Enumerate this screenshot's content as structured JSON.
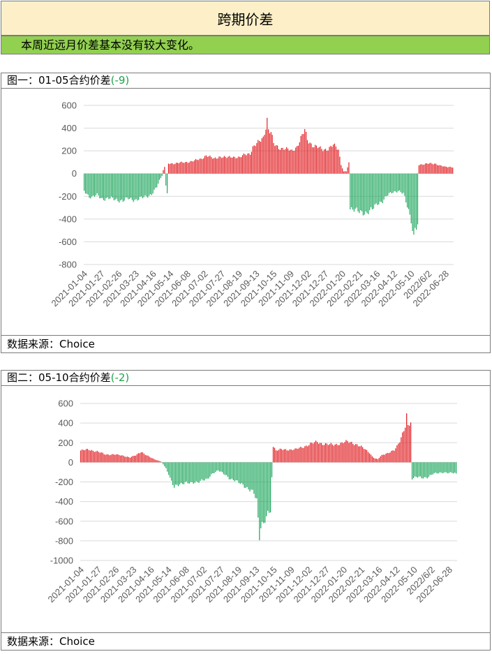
{
  "header": {
    "title": "跨期价差"
  },
  "summary": {
    "text": "本周近远月价差基本没有较大变化。"
  },
  "colors": {
    "positive": "#e0181c",
    "negative": "#1aa55a",
    "grid": "#d9d9d9",
    "title_bg": "#fdf0c8",
    "summary_bg": "#92d050"
  },
  "charts": [
    {
      "label": "图一：01-05合约价差",
      "latest": "(-9)",
      "source": "数据来源：Choice",
      "chart_data": {
        "type": "bar",
        "ylim": [
          -800,
          600
        ],
        "yticks": [
          -800,
          -600,
          -400,
          -200,
          0,
          200,
          400,
          600
        ],
        "xticks": [
          "2021-01-04",
          "2021-01-27",
          "2021-02-26",
          "2021-03-23",
          "2021-04-16",
          "2021-05-14",
          "2021-06-08",
          "2021-07-02",
          "2021-07-27",
          "2021-08-19",
          "2021-09-13",
          "2021-10-15",
          "2021-11-09",
          "2021-12-02",
          "2021-12-27",
          "2022-01-20",
          "2022-02-21",
          "2022-03-16",
          "2022-04-12",
          "2022-05-10",
          "2022/6/2",
          "2022-06-28"
        ],
        "anchors": [
          [
            0,
            -150
          ],
          [
            4,
            -200
          ],
          [
            6,
            -210
          ],
          [
            10,
            -190
          ],
          [
            14,
            -220
          ],
          [
            20,
            -220
          ],
          [
            26,
            -230
          ],
          [
            30,
            -240
          ],
          [
            34,
            -220
          ],
          [
            40,
            -230
          ],
          [
            46,
            -210
          ],
          [
            52,
            -180
          ],
          [
            56,
            -120
          ],
          [
            58,
            -60
          ],
          [
            60,
            -20
          ],
          [
            61,
            30
          ],
          [
            62,
            60
          ],
          [
            63,
            -100
          ],
          [
            64,
            -160
          ],
          [
            65,
            90
          ],
          [
            70,
            90
          ],
          [
            78,
            100
          ],
          [
            84,
            110
          ],
          [
            90,
            130
          ],
          [
            94,
            160
          ],
          [
            100,
            130
          ],
          [
            104,
            150
          ],
          [
            110,
            140
          ],
          [
            114,
            150
          ],
          [
            120,
            140
          ],
          [
            124,
            170
          ],
          [
            128,
            180
          ],
          [
            130,
            230
          ],
          [
            134,
            270
          ],
          [
            138,
            320
          ],
          [
            140,
            420
          ],
          [
            141,
            480
          ],
          [
            142,
            380
          ],
          [
            144,
            360
          ],
          [
            146,
            260
          ],
          [
            150,
            230
          ],
          [
            154,
            220
          ],
          [
            160,
            200
          ],
          [
            164,
            240
          ],
          [
            168,
            330
          ],
          [
            170,
            380
          ],
          [
            172,
            300
          ],
          [
            176,
            250
          ],
          [
            180,
            230
          ],
          [
            184,
            210
          ],
          [
            188,
            220
          ],
          [
            192,
            250
          ],
          [
            196,
            210
          ],
          [
            198,
            80
          ],
          [
            200,
            20
          ],
          [
            202,
            20
          ],
          [
            204,
            90
          ],
          [
            205,
            -300
          ],
          [
            208,
            -320
          ],
          [
            212,
            -340
          ],
          [
            218,
            -340
          ],
          [
            222,
            -320
          ],
          [
            226,
            -260
          ],
          [
            230,
            -240
          ],
          [
            234,
            -190
          ],
          [
            238,
            -160
          ],
          [
            242,
            -150
          ],
          [
            246,
            -180
          ],
          [
            248,
            -250
          ],
          [
            250,
            -320
          ],
          [
            252,
            -400
          ],
          [
            254,
            -560
          ],
          [
            255,
            -480
          ],
          [
            257,
            -470
          ],
          [
            258,
            80
          ],
          [
            262,
            80
          ],
          [
            266,
            90
          ],
          [
            270,
            90
          ],
          [
            274,
            70
          ],
          [
            278,
            60
          ],
          [
            282,
            60
          ],
          [
            284,
            56
          ]
        ],
        "bar_count": 285
      }
    },
    {
      "label": "图二：05-10合约价差",
      "latest": "(-2)",
      "source": "数据来源：Choice",
      "chart_data": {
        "type": "bar",
        "ylim": [
          -1000,
          600
        ],
        "yticks": [
          -1000,
          -800,
          -600,
          -400,
          -200,
          0,
          200,
          400,
          600
        ],
        "xticks": [
          "2021-01-04",
          "2021-01-27",
          "2021-02-26",
          "2021-03-23",
          "2021-04-16",
          "2021-05-14",
          "2021-06-08",
          "2021-07-02",
          "2021-07-27",
          "2021-08-19",
          "2021-09-13",
          "2021-10-15",
          "2021-11-09",
          "2021-12-02",
          "2021-12-27",
          "2022-01-20",
          "2022-02-21",
          "2022-03-16",
          "2022-04-12",
          "2022-05-10",
          "2022/6/2",
          "2022-06-28"
        ],
        "anchors": [
          [
            0,
            120
          ],
          [
            6,
            130
          ],
          [
            12,
            110
          ],
          [
            18,
            80
          ],
          [
            24,
            80
          ],
          [
            30,
            70
          ],
          [
            36,
            50
          ],
          [
            40,
            70
          ],
          [
            44,
            110
          ],
          [
            48,
            70
          ],
          [
            52,
            40
          ],
          [
            56,
            20
          ],
          [
            58,
            10
          ],
          [
            60,
            -20
          ],
          [
            62,
            -60
          ],
          [
            64,
            -120
          ],
          [
            66,
            -200
          ],
          [
            68,
            -260
          ],
          [
            72,
            -220
          ],
          [
            76,
            -200
          ],
          [
            80,
            -220
          ],
          [
            84,
            -200
          ],
          [
            88,
            -180
          ],
          [
            92,
            -180
          ],
          [
            96,
            -110
          ],
          [
            100,
            -80
          ],
          [
            104,
            -120
          ],
          [
            108,
            -160
          ],
          [
            112,
            -180
          ],
          [
            116,
            -220
          ],
          [
            120,
            -250
          ],
          [
            124,
            -280
          ],
          [
            126,
            -320
          ],
          [
            128,
            -400
          ],
          [
            129,
            -600
          ],
          [
            130,
            -760
          ],
          [
            131,
            -650
          ],
          [
            133,
            -600
          ],
          [
            134,
            -560
          ],
          [
            136,
            -520
          ],
          [
            138,
            -500
          ],
          [
            140,
            170
          ],
          [
            142,
            120
          ],
          [
            146,
            130
          ],
          [
            150,
            130
          ],
          [
            156,
            130
          ],
          [
            160,
            150
          ],
          [
            164,
            170
          ],
          [
            168,
            190
          ],
          [
            172,
            210
          ],
          [
            176,
            190
          ],
          [
            180,
            180
          ],
          [
            184,
            180
          ],
          [
            188,
            190
          ],
          [
            194,
            210
          ],
          [
            198,
            200
          ],
          [
            202,
            170
          ],
          [
            206,
            140
          ],
          [
            210,
            100
          ],
          [
            212,
            60
          ],
          [
            214,
            40
          ],
          [
            216,
            30
          ],
          [
            218,
            60
          ],
          [
            220,
            80
          ],
          [
            224,
            100
          ],
          [
            228,
            120
          ],
          [
            230,
            160
          ],
          [
            232,
            220
          ],
          [
            234,
            300
          ],
          [
            236,
            380
          ],
          [
            237,
            480
          ],
          [
            238,
            360
          ],
          [
            240,
            400
          ],
          [
            241,
            -160
          ],
          [
            244,
            -150
          ],
          [
            248,
            -160
          ],
          [
            252,
            -150
          ],
          [
            256,
            -120
          ],
          [
            260,
            -110
          ],
          [
            264,
            -100
          ],
          [
            268,
            -110
          ],
          [
            272,
            -110
          ],
          [
            273,
            -120
          ]
        ],
        "bar_count": 274
      }
    }
  ]
}
